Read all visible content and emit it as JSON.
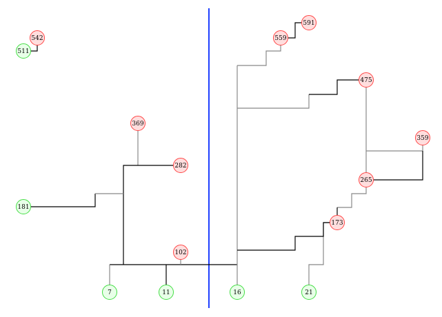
{
  "diagram": {
    "colors": {
      "red_node_fill": "#ffdede",
      "red_node_stroke": "#ff4444",
      "green_node_fill": "#e8ffe8",
      "green_node_stroke": "#44dd44",
      "divider": "#1f3fff",
      "edge_black": "#000000",
      "edge_gray": "#888888"
    },
    "nodes": [
      {
        "id": "542",
        "label": "542",
        "type": "red"
      },
      {
        "id": "511",
        "label": "511",
        "type": "green"
      },
      {
        "id": "369",
        "label": "369",
        "type": "red"
      },
      {
        "id": "282",
        "label": "282",
        "type": "red"
      },
      {
        "id": "181",
        "label": "181",
        "type": "green"
      },
      {
        "id": "102",
        "label": "102",
        "type": "red"
      },
      {
        "id": "7",
        "label": "7",
        "type": "green"
      },
      {
        "id": "11",
        "label": "11",
        "type": "green"
      },
      {
        "id": "16",
        "label": "16",
        "type": "green"
      },
      {
        "id": "21",
        "label": "21",
        "type": "green"
      },
      {
        "id": "559",
        "label": "559",
        "type": "red"
      },
      {
        "id": "591",
        "label": "591",
        "type": "red"
      },
      {
        "id": "475",
        "label": "475",
        "type": "red"
      },
      {
        "id": "359",
        "label": "359",
        "type": "red"
      },
      {
        "id": "265",
        "label": "265",
        "type": "red"
      },
      {
        "id": "173",
        "label": "173",
        "type": "red"
      }
    ]
  }
}
